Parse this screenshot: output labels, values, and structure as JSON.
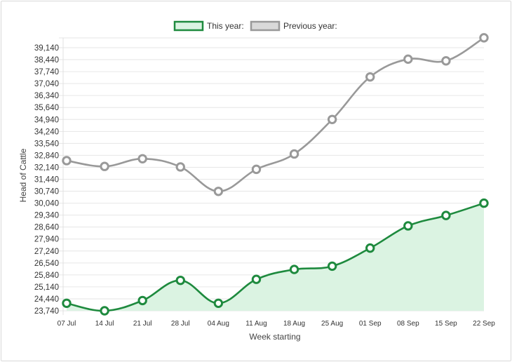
{
  "chart_data": {
    "type": "line",
    "xlabel": "Week starting",
    "ylabel": "Head of Cattle",
    "categories": [
      "07 Jul",
      "14 Jul",
      "21 Jul",
      "28 Jul",
      "04 Aug",
      "11 Aug",
      "18 Aug",
      "25 Aug",
      "01 Sep",
      "08 Sep",
      "15 Sep",
      "22 Sep"
    ],
    "yticks": [
      "23,740",
      "24,440",
      "25,140",
      "25,840",
      "26,540",
      "27,240",
      "27,940",
      "28,640",
      "29,340",
      "30,040",
      "30,740",
      "31,440",
      "32,140",
      "32,840",
      "33,540",
      "34,240",
      "34,940",
      "35,640",
      "36,340",
      "37,040",
      "37,740",
      "38,440",
      "39,140"
    ],
    "ylim": [
      23740,
      39140
    ],
    "ystep": 700,
    "grid": true,
    "legend_position": "top-center",
    "series": [
      {
        "name": "This year:",
        "color": "#1e8a3e",
        "fill": "#dbf3e2",
        "area": true,
        "values": [
          24180,
          23740,
          24340,
          25520,
          24180,
          25580,
          26160,
          26350,
          27410,
          28710,
          29320,
          30040
        ]
      },
      {
        "name": "Previous year:",
        "color": "#999999",
        "fill": "#d9d9d9",
        "area": false,
        "values": [
          32530,
          32190,
          32640,
          32160,
          30730,
          32020,
          32920,
          34940,
          37430,
          38470,
          38370,
          39720
        ]
      }
    ]
  }
}
